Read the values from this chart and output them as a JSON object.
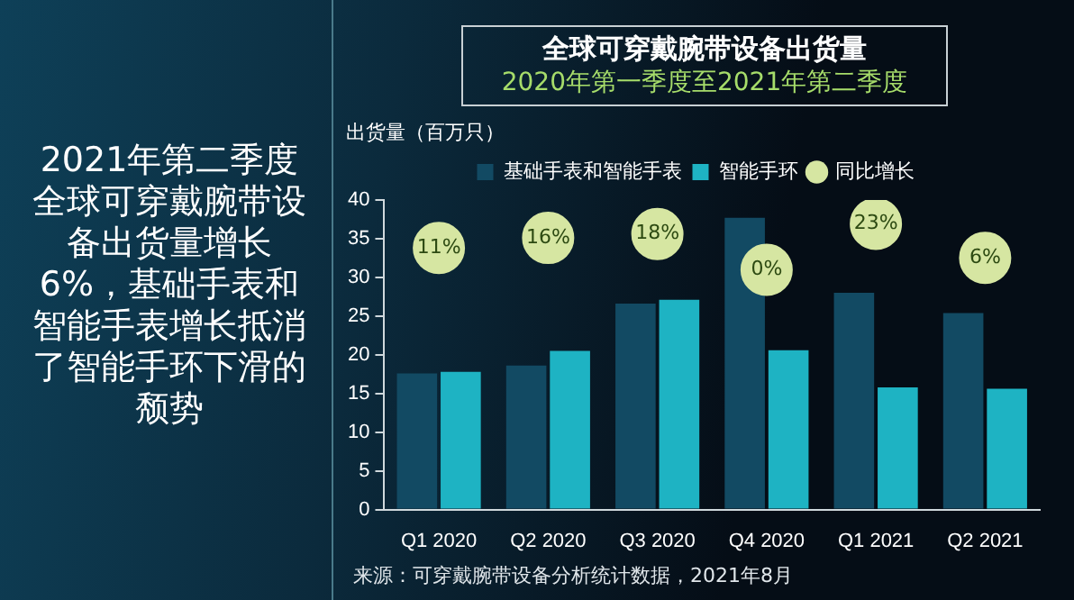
{
  "chart_data": {
    "type": "bar",
    "title": "全球可穿戴腕带设备出货量",
    "subtitle": "2020年第一季度至2021年第二季度",
    "ylabel": "出货量（百万只）",
    "categories": [
      "Q1 2020",
      "Q2 2020",
      "Q3 2020",
      "Q4 2020",
      "Q1 2021",
      "Q2 2021"
    ],
    "series": [
      {
        "name": "基础手表和智能手表",
        "color": "#124a63",
        "values": [
          17.6,
          18.6,
          26.6,
          37.7,
          28.0,
          25.4
        ]
      },
      {
        "name": "智能手环",
        "color": "#1eb3c3",
        "values": [
          17.8,
          20.5,
          27.1,
          20.6,
          15.8,
          15.6
        ]
      },
      {
        "name": "同比增长",
        "type": "scatter",
        "color": "#d6e6a2",
        "marker": "circle",
        "axis": "y2",
        "values": [
          11,
          16,
          18,
          0,
          23,
          6
        ],
        "value_labels": [
          "11%",
          "16%",
          "18%",
          "0%",
          "23%",
          "6%"
        ]
      }
    ],
    "y2lim": [
      -120,
      35
    ],
    "ylim": [
      0,
      40
    ],
    "yticks": [
      0,
      5,
      10,
      15,
      20,
      25,
      30,
      35,
      40
    ],
    "grid": false,
    "legend": "top",
    "annotations": [
      "2021年第二季度全球可穿戴腕带设备出货量增长6%，基础手表和智能手表增长抵消了智能手环下滑的颓势",
      "来源：可穿戴腕带设备分析统计数据，2021年8月"
    ]
  }
}
